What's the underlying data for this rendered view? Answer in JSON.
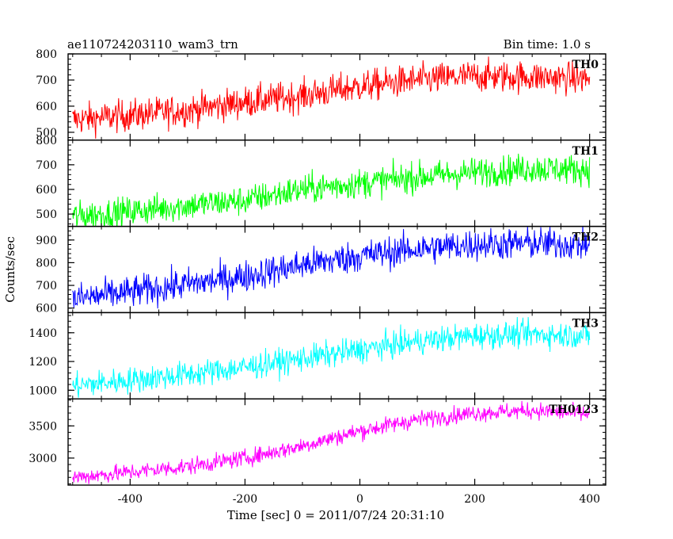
{
  "header": {
    "title": "ae110724203110_wam3_trn",
    "bin_time": "Bin time: 1.0 s"
  },
  "axes": {
    "ylabel": "Counts/sec",
    "xlabel": "Time [sec] 0 = 2011/07/24 20:31:10"
  },
  "chart_data": {
    "type": "line",
    "title": "ae110724203110_wam3_trn",
    "xlabel": "Time [sec] 0 = 2011/07/24 20:31:10",
    "ylabel": "Counts/sec",
    "xlim": [
      -508,
      428
    ],
    "x_ticks": [
      -400,
      -200,
      0,
      200,
      400
    ],
    "x_range_data": [
      -500,
      400
    ],
    "bin_time_s": 1.0,
    "panels": [
      {
        "name": "TH0",
        "color": "#ff0000",
        "ylim": [
          470,
          800
        ],
        "y_ticks": [
          500,
          600,
          700,
          800
        ],
        "trend": [
          [
            -500,
            548
          ],
          [
            -400,
            565
          ],
          [
            -300,
            585
          ],
          [
            -200,
            615
          ],
          [
            -100,
            640
          ],
          [
            0,
            675
          ],
          [
            100,
            700
          ],
          [
            200,
            715
          ],
          [
            300,
            712
          ],
          [
            400,
            705
          ]
        ],
        "noise": 30
      },
      {
        "name": "TH1",
        "color": "#00ff00",
        "ylim": [
          450,
          800
        ],
        "y_ticks": [
          500,
          600,
          700,
          800
        ],
        "trend": [
          [
            -500,
            490
          ],
          [
            -400,
            510
          ],
          [
            -300,
            535
          ],
          [
            -200,
            555
          ],
          [
            -100,
            600
          ],
          [
            0,
            625
          ],
          [
            100,
            650
          ],
          [
            200,
            670
          ],
          [
            300,
            685
          ],
          [
            400,
            680
          ]
        ],
        "noise": 30
      },
      {
        "name": "TH2",
        "color": "#0000ff",
        "ylim": [
          580,
          960
        ],
        "y_ticks": [
          600,
          700,
          800,
          900
        ],
        "trend": [
          [
            -500,
            640
          ],
          [
            -400,
            670
          ],
          [
            -300,
            705
          ],
          [
            -200,
            740
          ],
          [
            -100,
            790
          ],
          [
            0,
            830
          ],
          [
            100,
            860
          ],
          [
            200,
            880
          ],
          [
            300,
            885
          ],
          [
            400,
            880
          ]
        ],
        "noise": 35
      },
      {
        "name": "TH3",
        "color": "#00ffff",
        "ylim": [
          940,
          1540
        ],
        "y_ticks": [
          1000,
          1200,
          1400
        ],
        "trend": [
          [
            -500,
            1030
          ],
          [
            -400,
            1070
          ],
          [
            -300,
            1110
          ],
          [
            -200,
            1160
          ],
          [
            -100,
            1220
          ],
          [
            0,
            1280
          ],
          [
            100,
            1340
          ],
          [
            200,
            1380
          ],
          [
            300,
            1390
          ],
          [
            400,
            1380
          ]
        ],
        "noise": 45
      },
      {
        "name": "TH0123",
        "color": "#ff00ff",
        "ylim": [
          2580,
          3920
        ],
        "y_ticks": [
          3000,
          3500
        ],
        "trend": [
          [
            -500,
            2700
          ],
          [
            -400,
            2780
          ],
          [
            -300,
            2870
          ],
          [
            -200,
            3000
          ],
          [
            -100,
            3190
          ],
          [
            0,
            3420
          ],
          [
            100,
            3600
          ],
          [
            200,
            3700
          ],
          [
            300,
            3740
          ],
          [
            400,
            3680
          ]
        ],
        "noise": 65
      }
    ]
  }
}
